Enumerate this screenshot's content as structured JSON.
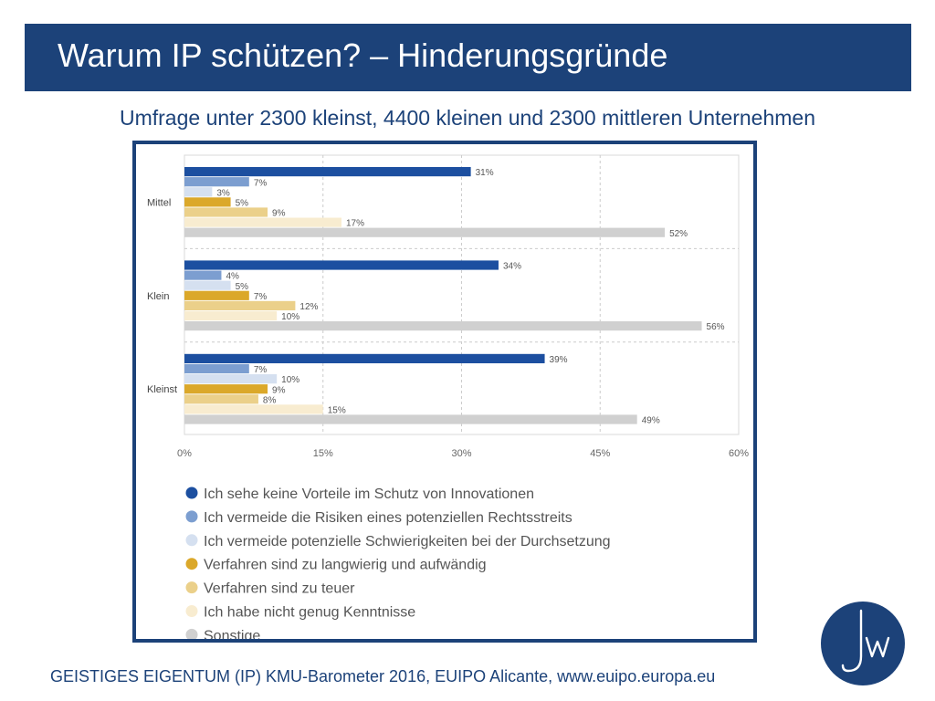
{
  "slide": {
    "title": "Warum IP schützen? – Hinderungsgründe",
    "subtitle": "Umfrage unter 2300 kleinst, 4400 kleinen und 2300 mittleren Unternehmen",
    "footer": "GEISTIGES EIGENTUM (IP) KMU-Barometer 2016, EUIPO Alicante, www.euipo.europa.eu",
    "logo_icon": "jw-monogram-icon"
  },
  "colors": {
    "title_bar": "#1c4279",
    "frame": "#1c4279",
    "text_dark": "#555555"
  },
  "chart_data": {
    "type": "bar",
    "orientation": "horizontal",
    "categories": [
      "Mittel",
      "Klein",
      "Kleinst"
    ],
    "series": [
      {
        "name": "Ich sehe keine Vorteile im Schutz von Innovationen",
        "color": "#1c4fa0",
        "values": [
          31,
          34,
          39
        ],
        "labels": [
          "31%",
          "34%",
          "39%"
        ]
      },
      {
        "name": "Ich vermeide die Risiken eines potenziellen Rechtsstreits",
        "color": "#7c9ed0",
        "values": [
          7,
          4,
          7
        ],
        "labels": [
          "7%",
          "4%",
          "7%"
        ]
      },
      {
        "name": "Ich vermeide potenzielle Schwierigkeiten bei der Durchsetzung",
        "color": "#d5e0f0",
        "values": [
          3,
          5,
          10
        ],
        "labels": [
          "3%",
          "5%",
          "10%"
        ]
      },
      {
        "name": "Verfahren sind zu langwierig und aufwändig",
        "color": "#dba82a",
        "values": [
          5,
          7,
          9
        ],
        "labels": [
          "5%",
          "7%",
          "9%"
        ]
      },
      {
        "name": "Verfahren sind zu teuer",
        "color": "#ebd08a",
        "values": [
          9,
          12,
          8
        ],
        "labels": [
          "9%",
          "12%",
          "8%"
        ]
      },
      {
        "name": "Ich habe nicht genug Kenntnisse",
        "color": "#f8ecd0",
        "values": [
          17,
          10,
          15
        ],
        "labels": [
          "17%",
          "10%",
          "15%"
        ]
      },
      {
        "name": "Sonstige",
        "color": "#d0d0d0",
        "values": [
          52,
          56,
          49
        ],
        "labels": [
          "52%",
          "56%",
          "49%"
        ]
      }
    ],
    "xlim": [
      0,
      60
    ],
    "xticks": [
      0,
      15,
      30,
      45,
      60
    ],
    "xtick_labels": [
      "0%",
      "15%",
      "30%",
      "45%",
      "60%"
    ],
    "grid": true,
    "legend": "bottom"
  }
}
